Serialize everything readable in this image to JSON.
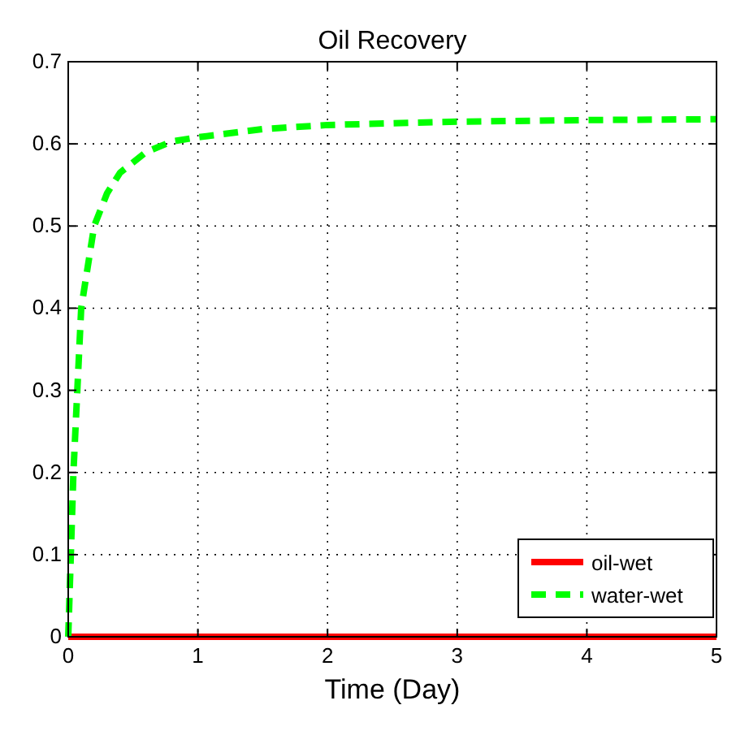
{
  "chart_data": {
    "type": "line",
    "title": "Oil Recovery",
    "xlabel": "Time (Day)",
    "xlim": [
      0,
      5
    ],
    "xticks": [
      0,
      1,
      2,
      3,
      4,
      5
    ],
    "ylim": [
      0,
      0.7
    ],
    "yticks": [
      0,
      0.1,
      0.2,
      0.3,
      0.4,
      0.5,
      0.6,
      0.7
    ],
    "grid": true,
    "legend": "bottom right",
    "series": [
      {
        "name": "oil-wet",
        "color": "#ff0000",
        "line_style": "solid",
        "x": [
          0,
          1,
          2,
          3,
          4,
          5
        ],
        "values": [
          0,
          0,
          0,
          0,
          0,
          0
        ]
      },
      {
        "name": "water-wet",
        "color": "#00ff00",
        "line_style": "dashed",
        "x": [
          0,
          0.02,
          0.04,
          0.07,
          0.1,
          0.15,
          0.2,
          0.3,
          0.4,
          0.6,
          0.8,
          1,
          1.5,
          2,
          3,
          4,
          5
        ],
        "values": [
          0,
          0.1,
          0.2,
          0.3,
          0.4,
          0.45,
          0.5,
          0.54,
          0.565,
          0.59,
          0.603,
          0.608,
          0.618,
          0.623,
          0.627,
          0.629,
          0.63
        ]
      }
    ]
  }
}
